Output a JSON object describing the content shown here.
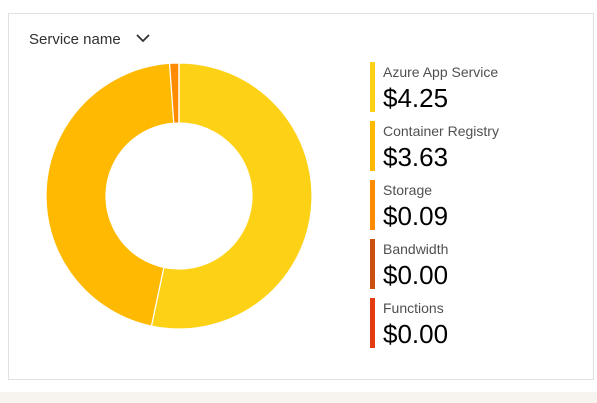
{
  "chart_data": {
    "type": "pie",
    "donut": true,
    "title": "Service name",
    "categories": [
      "Azure App Service",
      "Container Registry",
      "Storage",
      "Bandwidth",
      "Functions"
    ],
    "values": [
      4.25,
      3.63,
      0.09,
      0.0,
      0.0
    ],
    "value_labels": [
      "$4.25",
      "$3.63",
      "$0.09",
      "$0.00",
      "$0.00"
    ],
    "colors": [
      "#fcd116",
      "#ffb900",
      "#ff8c00",
      "#ca5010",
      "#e43b0f"
    ]
  }
}
